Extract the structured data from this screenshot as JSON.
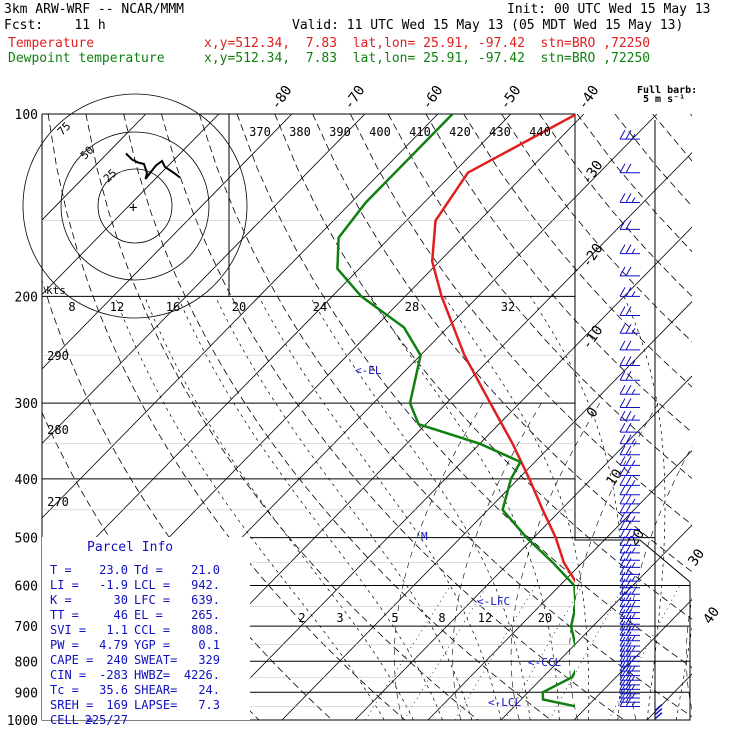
{
  "header": {
    "model": "3km ARW-WRF -- NCAR/MMM",
    "init": "Init: 00 UTC Wed 15 May 13",
    "fcst": "Fcst:    11 h",
    "valid": "Valid: 11 UTC Wed 15 May 13 (05 MDT Wed 15 May 13)",
    "temp_label": "Temperature",
    "dew_label": "Dewpoint temperature",
    "temp_info": "x,y=512.34,  7.83  lat,lon= 25.91, -97.42  stn=BRO ,72250",
    "dew_info": "x,y=512.34,  7.83  lat,lon= 25.91, -97.42  stn=BRO ,72250",
    "barb_legend_1": "Full barb:",
    "barb_legend_2": "5 m s⁻¹"
  },
  "colors": {
    "temperature": "#e02020",
    "dewpoint": "#108010",
    "parcel_text": "#1010c0",
    "barbs": "#1010c0"
  },
  "chart_data": {
    "type": "line",
    "pressure_levels": [
      "100",
      "200",
      "300",
      "400",
      "500",
      "600",
      "700",
      "800",
      "900",
      "1000"
    ],
    "temp_axis_labels": [
      "-80",
      "-70",
      "-60",
      "-50",
      "-40",
      "-30",
      "-20",
      "-10",
      "0",
      "10",
      "20",
      "30",
      "40"
    ],
    "theta_labels": [
      "370",
      "380",
      "390",
      "400",
      "410",
      "420",
      "430",
      "440"
    ],
    "theta_e_labels": [
      "290",
      "280",
      "270"
    ],
    "mixing_ratio_labels": [
      "2",
      "3",
      "5",
      "8",
      "12",
      "20"
    ],
    "hodograph": {
      "ring_labels": [
        "75",
        "50",
        "25"
      ],
      "units": "kts",
      "speed_labels": [
        "8",
        "12",
        "16",
        "20",
        "24",
        "28",
        "32"
      ],
      "points": [
        [
          -4,
          33
        ],
        [
          -6,
          35
        ],
        [
          -2,
          31
        ],
        [
          2,
          29
        ],
        [
          6,
          28
        ],
        [
          8,
          22
        ],
        [
          7,
          18
        ],
        [
          10,
          22
        ],
        [
          14,
          27
        ],
        [
          18,
          30
        ],
        [
          20,
          26
        ],
        [
          26,
          22
        ],
        [
          30,
          19
        ]
      ]
    },
    "level_markers": [
      "<-EL",
      "M",
      "<-LFC",
      "<-CCL",
      "<-LCL"
    ],
    "series": [
      {
        "name": "Temperature",
        "points": [
          [
            1000,
            23.0
          ],
          [
            975,
            21.0
          ],
          [
            950,
            20.5
          ],
          [
            925,
            22.0
          ],
          [
            900,
            23.0
          ],
          [
            850,
            21.5
          ],
          [
            800,
            19.0
          ],
          [
            750,
            15.5
          ],
          [
            700,
            11.5
          ],
          [
            650,
            7.0
          ],
          [
            600,
            2.5
          ],
          [
            550,
            -2.5
          ],
          [
            500,
            -7.0
          ],
          [
            450,
            -12.5
          ],
          [
            400,
            -18.5
          ],
          [
            350,
            -25.5
          ],
          [
            300,
            -34.0
          ],
          [
            250,
            -44.0
          ],
          [
            200,
            -55.0
          ],
          [
            175,
            -61.0
          ],
          [
            150,
            -66.0
          ],
          [
            125,
            -68.0
          ],
          [
            110,
            -64.0
          ],
          [
            100,
            -61.0
          ]
        ]
      },
      {
        "name": "Dewpoint temperature",
        "points": [
          [
            1000,
            21.0
          ],
          [
            975,
            20.5
          ],
          [
            950,
            18.5
          ],
          [
            925,
            13.0
          ],
          [
            900,
            12.0
          ],
          [
            850,
            14.0
          ],
          [
            800,
            13.0
          ],
          [
            750,
            10.0
          ],
          [
            700,
            7.0
          ],
          [
            650,
            5.0
          ],
          [
            600,
            2.0
          ],
          [
            550,
            -4.0
          ],
          [
            500,
            -11.0
          ],
          [
            450,
            -18.0
          ],
          [
            400,
            -21.0
          ],
          [
            375,
            -22.0
          ],
          [
            350,
            -30.0
          ],
          [
            325,
            -41.0
          ],
          [
            300,
            -45.0
          ],
          [
            250,
            -50.0
          ],
          [
            225,
            -56.0
          ],
          [
            200,
            -66.0
          ],
          [
            180,
            -73.0
          ],
          [
            160,
            -77.0
          ],
          [
            140,
            -78.0
          ],
          [
            120,
            -78.0
          ],
          [
            100,
            -78.0
          ]
        ]
      }
    ]
  },
  "parcel_info": {
    "title": "Parcel Info",
    "rows": [
      [
        "T  =",
        "23.0",
        "Td =",
        "21.0"
      ],
      [
        "LI =",
        "-1.9",
        "LCL =",
        "942."
      ],
      [
        "K  =",
        "30",
        "LFC =",
        "639."
      ],
      [
        "TT =",
        "46",
        "EL  =",
        "265."
      ],
      [
        "SVI =",
        "1.1",
        "CCL =",
        "808."
      ],
      [
        "PW =",
        "4.79",
        "YGP =",
        "0.1"
      ],
      [
        "CAPE =",
        "240",
        "SWEAT=",
        "329"
      ],
      [
        "CIN =",
        "-283",
        "HWBZ=",
        "4226."
      ],
      [
        "Tc =",
        "35.6",
        "SHEAR=",
        "24."
      ],
      [
        "SREH =",
        "169",
        "LAPSE=",
        "7.3"
      ],
      [
        "CELL =",
        "225/27",
        "",
        ""
      ]
    ]
  }
}
